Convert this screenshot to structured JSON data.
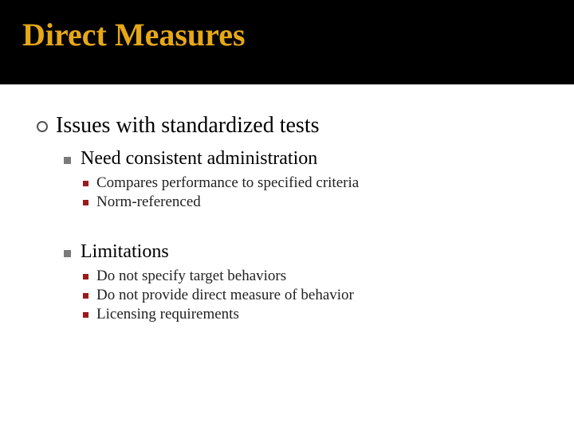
{
  "title": {
    "text": "Direct Measures",
    "color": "#e6a817",
    "bg": "#000000",
    "font_size": 40,
    "font_weight": "bold"
  },
  "content": {
    "level1": {
      "text": "Issues with standardized tests",
      "bullet_color": "#555555",
      "font_size": 28
    },
    "sections": [
      {
        "heading": "Need consistent administration",
        "bullet_color": "#7a7a7a",
        "font_size": 24,
        "items": [
          {
            "text": "Compares performance to specified criteria",
            "bullet_color": "#9a1b1b",
            "font_size": 19
          },
          {
            "text": "Norm-referenced",
            "bullet_color": "#9a1b1b",
            "font_size": 19
          }
        ]
      },
      {
        "heading": "Limitations",
        "bullet_color": "#7a7a7a",
        "font_size": 24,
        "items": [
          {
            "text": "Do not specify target behaviors",
            "bullet_color": "#9a1b1b",
            "font_size": 19
          },
          {
            "text": "Do not provide direct measure of behavior",
            "bullet_color": "#9a1b1b",
            "font_size": 19
          },
          {
            "text": "Licensing requirements",
            "bullet_color": "#9a1b1b",
            "font_size": 19
          }
        ]
      }
    ]
  },
  "layout": {
    "slide_width": 720,
    "slide_height": 540,
    "title_bar_height": 106,
    "background": "#ffffff"
  }
}
